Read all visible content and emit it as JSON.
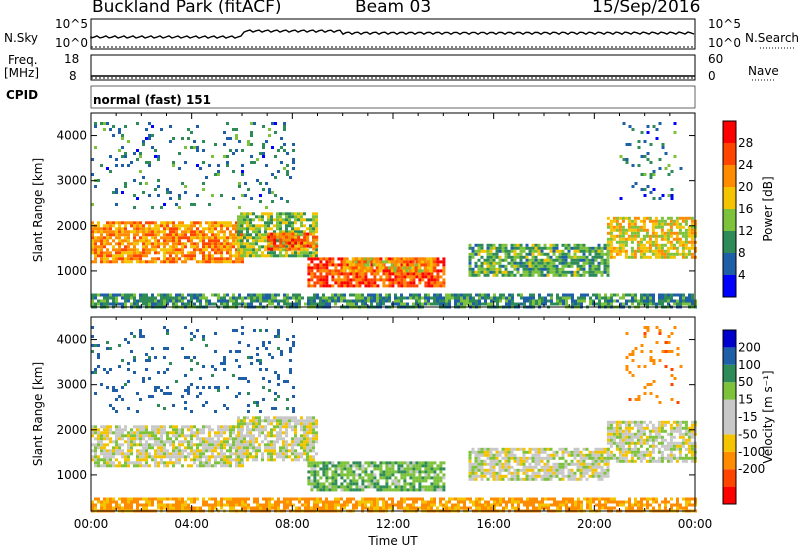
{
  "header": {
    "station": "Buckland Park (fitACF)",
    "beam": "Beam 03",
    "date": "15/Sep/2016"
  },
  "panels": {
    "nsky_label": "N.Sky",
    "nsky_tick_top": "10^5",
    "nsky_tick_bottom": "10^0",
    "nsearch_label": "N.Search",
    "nsearch_tick_top": "10^5",
    "nsearch_tick_bottom": "10^0",
    "freq_label": "Freq.",
    "freq_unit": "[MHz]",
    "freq_tick_top": "18",
    "freq_tick_bottom": "8",
    "nave_label": "Nave",
    "nave_tick_top": "60",
    "nave_tick_bottom": "0",
    "cpid_label": "CPID",
    "cpid_text": "normal (fast) 151"
  },
  "colors": {
    "power_scale": [
      "#0000ff",
      "#1f5fa8",
      "#2e8b57",
      "#7cc23a",
      "#f5c400",
      "#ff8c00",
      "#ff4500",
      "#ff0000"
    ],
    "velocity_scale": [
      "#ff0000",
      "#ff4500",
      "#ff8c00",
      "#f5c400",
      "#c8c8c8",
      "#c8c8c8",
      "#7cc23a",
      "#2e8b57",
      "#1f5fa8",
      "#0000cc"
    ]
  },
  "chart_data": [
    {
      "type": "heatmap",
      "name": "power",
      "ylabel": "Slant Range [km]",
      "xlabel": "",
      "x_ticks": [
        "00:00",
        "04:00",
        "08:00",
        "12:00",
        "16:00",
        "20:00",
        "00:00"
      ],
      "y_ticks": [
        1000,
        2000,
        3000,
        4000
      ],
      "ylim": [
        200,
        4500
      ],
      "xlim_hours": [
        0,
        24
      ],
      "colorbar_label": "Power [dB]",
      "colorbar_ticks": [
        4,
        8,
        12,
        16,
        20,
        24,
        28
      ],
      "regions": [
        {
          "t": [
            0.0,
            6.0
          ],
          "r": [
            1200,
            2100
          ],
          "db": 22
        },
        {
          "t": [
            5.8,
            9.0
          ],
          "r": [
            1350,
            2300
          ],
          "db": 14
        },
        {
          "t": [
            7.0,
            9.0
          ],
          "r": [
            1500,
            1850
          ],
          "db": 24
        },
        {
          "t": [
            8.6,
            14.0
          ],
          "r": [
            700,
            1300
          ],
          "db": 26
        },
        {
          "t": [
            10.0,
            13.5
          ],
          "r": [
            1000,
            1300
          ],
          "db": 20
        },
        {
          "t": [
            15.0,
            20.5
          ],
          "r": [
            900,
            1600
          ],
          "db": 12
        },
        {
          "t": [
            20.5,
            24.0
          ],
          "r": [
            1300,
            2200
          ],
          "db": 18
        },
        {
          "t": [
            0.0,
            24.0
          ],
          "r": [
            200,
            500
          ],
          "db": 10
        },
        {
          "t": [
            0.0,
            8.0
          ],
          "r": [
            2400,
            4300
          ],
          "db": 8
        },
        {
          "t": [
            21.0,
            23.5
          ],
          "r": [
            2600,
            4300
          ],
          "db": 8
        }
      ]
    },
    {
      "type": "heatmap",
      "name": "velocity",
      "ylabel": "Slant Range [km]",
      "xlabel": "Time UT",
      "x_ticks": [
        "00:00",
        "04:00",
        "08:00",
        "12:00",
        "16:00",
        "20:00",
        "00:00"
      ],
      "y_ticks": [
        1000,
        2000,
        3000,
        4000
      ],
      "ylim": [
        200,
        4500
      ],
      "xlim_hours": [
        0,
        24
      ],
      "colorbar_label": "Velocity [m s⁻¹]",
      "colorbar_ticks": [
        200,
        100,
        50,
        15,
        -15,
        -50,
        -100,
        -200
      ],
      "regions": [
        {
          "t": [
            0.0,
            6.0
          ],
          "r": [
            1200,
            2100
          ],
          "v": 0
        },
        {
          "t": [
            5.8,
            9.0
          ],
          "r": [
            1350,
            2300
          ],
          "v": 0
        },
        {
          "t": [
            8.6,
            14.0
          ],
          "r": [
            700,
            1300
          ],
          "v": 40
        },
        {
          "t": [
            15.0,
            20.5
          ],
          "r": [
            900,
            1600
          ],
          "v": 0
        },
        {
          "t": [
            20.5,
            24.0
          ],
          "r": [
            1300,
            2200
          ],
          "v": 0
        },
        {
          "t": [
            0.0,
            24.0
          ],
          "r": [
            200,
            500
          ],
          "v": -60
        },
        {
          "t": [
            0.0,
            8.0
          ],
          "r": [
            2400,
            4300
          ],
          "v": 120
        },
        {
          "t": [
            21.0,
            23.5
          ],
          "r": [
            2600,
            4300
          ],
          "v": -80
        }
      ]
    }
  ]
}
